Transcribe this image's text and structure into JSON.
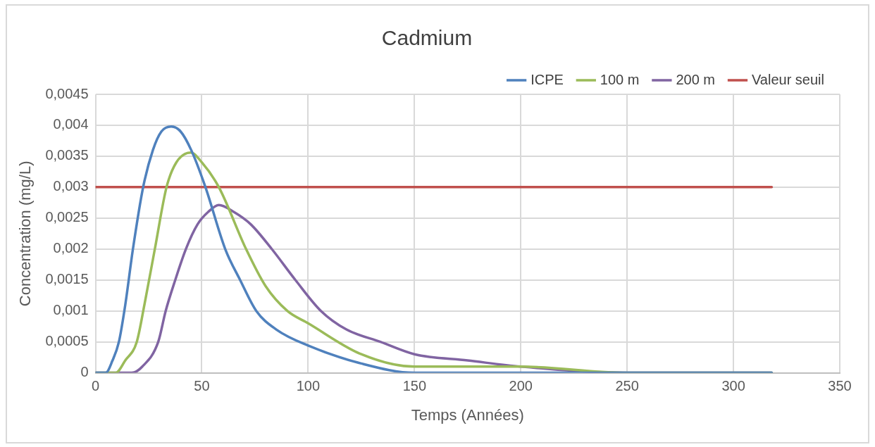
{
  "chart_data": {
    "type": "line",
    "title": "Cadmium",
    "xlabel": "Temps (Années)",
    "ylabel": "Concentration (mg/L)",
    "xlim": [
      0,
      350
    ],
    "xticks": [
      0,
      50,
      100,
      150,
      200,
      250,
      300,
      350
    ],
    "ylim": [
      0,
      0.0045
    ],
    "yticks": [
      {
        "value": 0,
        "label": "0"
      },
      {
        "value": 0.0005,
        "label": "0,0005"
      },
      {
        "value": 0.001,
        "label": "0,001"
      },
      {
        "value": 0.0015,
        "label": "0,0015"
      },
      {
        "value": 0.002,
        "label": "0,002"
      },
      {
        "value": 0.0025,
        "label": "0,0025"
      },
      {
        "value": 0.003,
        "label": "0,003"
      },
      {
        "value": 0.0035,
        "label": "0,0035"
      },
      {
        "value": 0.004,
        "label": "0,004"
      },
      {
        "value": 0.0045,
        "label": "0,0045"
      }
    ],
    "grid": true,
    "legend": "top",
    "marker": "none",
    "line_style": "solid",
    "series": [
      {
        "name": "ICPE",
        "color": "#4f81bd",
        "x": [
          0,
          4.8,
          8,
          11,
          14,
          17.6,
          22.4,
          27,
          31,
          35.6,
          40,
          45,
          51.7,
          61,
          68,
          75.6,
          85,
          100,
          125,
          150,
          200,
          250,
          318
        ],
        "values": [
          0,
          0,
          0.0002,
          0.0005,
          0.0011,
          0.002,
          0.003,
          0.0036,
          0.0039,
          0.00398,
          0.0039,
          0.0036,
          0.003,
          0.002,
          0.0015,
          0.001,
          0.0007,
          0.00044,
          0.00015,
          0,
          0,
          0,
          0
        ]
      },
      {
        "name": "100 m",
        "color": "#9bbb59",
        "x": [
          0,
          9.5,
          14,
          19.4,
          23,
          27.9,
          33.4,
          38,
          44.8,
          50,
          58,
          70.8,
          80,
          90.2,
          100,
          125,
          150,
          200,
          250,
          318
        ],
        "values": [
          0,
          0,
          0.0002,
          0.0005,
          0.0011,
          0.002,
          0.003,
          0.0034,
          0.00356,
          0.0034,
          0.003,
          0.002,
          0.0014,
          0.001,
          0.0008,
          0.0003,
          0.0001,
          0.0001,
          0,
          0
        ]
      },
      {
        "name": "200 m",
        "color": "#8064a2",
        "x": [
          0,
          17,
          22,
          29.5,
          33,
          37.5,
          42.5,
          48,
          53,
          58,
          65,
          73,
          82.9,
          94,
          106,
          118,
          134,
          150,
          175,
          200,
          250,
          318
        ],
        "values": [
          0,
          0,
          0.0001,
          0.0005,
          0.001,
          0.0015,
          0.002,
          0.0024,
          0.0026,
          0.00271,
          0.0026,
          0.0024,
          0.002,
          0.0015,
          0.001,
          0.0007,
          0.0005,
          0.0003,
          0.0002,
          0.0001,
          0,
          0
        ]
      },
      {
        "name": "Valeur seuil",
        "color": "#c0504d",
        "x": [
          0,
          318
        ],
        "values": [
          0.003,
          0.003
        ]
      }
    ]
  }
}
